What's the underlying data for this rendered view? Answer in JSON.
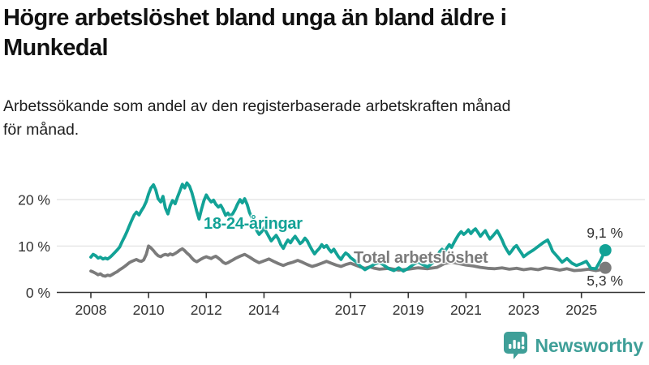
{
  "title_lines": [
    "Högre arbetslöshet bland unga än bland äldre i",
    "Munkedal"
  ],
  "subtitle_lines": [
    "Arbetssökande som andel av den registerbaserade arbetskraften månad",
    "för månad."
  ],
  "brand": {
    "name": "Newsworthy",
    "color": "#3f9f98"
  },
  "chart_data": {
    "type": "line",
    "unit": "%",
    "title": "Högre arbetslöshet bland unga än bland äldre i Munkedal",
    "x_axis": {
      "ticks": [
        2008,
        2010,
        2012,
        2014,
        2017,
        2019,
        2021,
        2023,
        2025
      ],
      "range": [
        2006.9,
        2027.3
      ]
    },
    "y_axis": {
      "ticks": [
        0,
        10,
        20
      ],
      "tick_labels": [
        "0 %",
        "10 %",
        "20 %"
      ],
      "range": [
        0,
        25
      ],
      "grid": true
    },
    "series": [
      {
        "name": "Total arbetslöshet",
        "color": "#7b7b7b",
        "end_label": "5,3 %",
        "end_value": 5.3,
        "points": [
          [
            2008.0,
            4.6
          ],
          [
            2008.08,
            4.4
          ],
          [
            2008.17,
            4.1
          ],
          [
            2008.25,
            3.8
          ],
          [
            2008.33,
            4.0
          ],
          [
            2008.42,
            3.6
          ],
          [
            2008.5,
            3.5
          ],
          [
            2008.58,
            3.7
          ],
          [
            2008.67,
            3.6
          ],
          [
            2008.75,
            3.9
          ],
          [
            2008.83,
            4.2
          ],
          [
            2008.92,
            4.5
          ],
          [
            2009.0,
            4.9
          ],
          [
            2009.08,
            5.2
          ],
          [
            2009.17,
            5.6
          ],
          [
            2009.25,
            6.0
          ],
          [
            2009.33,
            6.4
          ],
          [
            2009.42,
            6.7
          ],
          [
            2009.5,
            6.9
          ],
          [
            2009.58,
            7.1
          ],
          [
            2009.67,
            6.8
          ],
          [
            2009.75,
            6.7
          ],
          [
            2009.83,
            7.0
          ],
          [
            2009.92,
            8.2
          ],
          [
            2010.0,
            10.0
          ],
          [
            2010.08,
            9.6
          ],
          [
            2010.17,
            9.0
          ],
          [
            2010.25,
            8.4
          ],
          [
            2010.33,
            7.9
          ],
          [
            2010.42,
            7.7
          ],
          [
            2010.5,
            8.0
          ],
          [
            2010.58,
            8.2
          ],
          [
            2010.67,
            8.0
          ],
          [
            2010.75,
            8.3
          ],
          [
            2010.83,
            8.1
          ],
          [
            2010.92,
            8.4
          ],
          [
            2011.0,
            8.7
          ],
          [
            2011.08,
            9.1
          ],
          [
            2011.17,
            9.4
          ],
          [
            2011.25,
            9.0
          ],
          [
            2011.33,
            8.5
          ],
          [
            2011.42,
            8.0
          ],
          [
            2011.5,
            7.4
          ],
          [
            2011.58,
            6.9
          ],
          [
            2011.67,
            6.6
          ],
          [
            2011.75,
            6.9
          ],
          [
            2011.83,
            7.2
          ],
          [
            2011.92,
            7.5
          ],
          [
            2012.0,
            7.7
          ],
          [
            2012.08,
            7.5
          ],
          [
            2012.17,
            7.3
          ],
          [
            2012.25,
            7.6
          ],
          [
            2012.33,
            7.8
          ],
          [
            2012.42,
            7.4
          ],
          [
            2012.5,
            7.0
          ],
          [
            2012.58,
            6.5
          ],
          [
            2012.67,
            6.2
          ],
          [
            2012.75,
            6.4
          ],
          [
            2012.83,
            6.7
          ],
          [
            2012.92,
            7.0
          ],
          [
            2013.0,
            7.3
          ],
          [
            2013.17,
            7.8
          ],
          [
            2013.33,
            8.2
          ],
          [
            2013.5,
            7.6
          ],
          [
            2013.67,
            6.9
          ],
          [
            2013.83,
            6.4
          ],
          [
            2014.0,
            6.8
          ],
          [
            2014.17,
            7.2
          ],
          [
            2014.33,
            6.7
          ],
          [
            2014.5,
            6.2
          ],
          [
            2014.67,
            5.8
          ],
          [
            2014.83,
            6.2
          ],
          [
            2015.0,
            6.5
          ],
          [
            2015.17,
            6.9
          ],
          [
            2015.33,
            6.5
          ],
          [
            2015.5,
            6.0
          ],
          [
            2015.67,
            5.6
          ],
          [
            2015.83,
            5.9
          ],
          [
            2016.0,
            6.3
          ],
          [
            2016.17,
            6.7
          ],
          [
            2016.33,
            6.3
          ],
          [
            2016.5,
            5.9
          ],
          [
            2016.67,
            5.6
          ],
          [
            2016.83,
            6.0
          ],
          [
            2017.0,
            6.3
          ],
          [
            2017.17,
            5.9
          ],
          [
            2017.33,
            5.5
          ],
          [
            2017.5,
            5.2
          ],
          [
            2017.67,
            5.5
          ],
          [
            2017.83,
            5.2
          ],
          [
            2018.0,
            5.0
          ],
          [
            2018.33,
            5.2
          ],
          [
            2018.67,
            4.8
          ],
          [
            2019.0,
            5.0
          ],
          [
            2019.33,
            5.3
          ],
          [
            2019.67,
            5.1
          ],
          [
            2020.0,
            5.4
          ],
          [
            2020.25,
            6.2
          ],
          [
            2020.5,
            6.5
          ],
          [
            2020.75,
            6.2
          ],
          [
            2021.0,
            5.9
          ],
          [
            2021.25,
            5.7
          ],
          [
            2021.5,
            5.4
          ],
          [
            2021.75,
            5.2
          ],
          [
            2022.0,
            5.1
          ],
          [
            2022.25,
            5.3
          ],
          [
            2022.5,
            5.0
          ],
          [
            2022.75,
            5.2
          ],
          [
            2023.0,
            4.9
          ],
          [
            2023.25,
            5.1
          ],
          [
            2023.5,
            4.9
          ],
          [
            2023.75,
            5.3
          ],
          [
            2024.0,
            5.1
          ],
          [
            2024.25,
            4.8
          ],
          [
            2024.5,
            5.1
          ],
          [
            2024.75,
            4.7
          ],
          [
            2025.0,
            4.8
          ],
          [
            2025.25,
            5.0
          ],
          [
            2025.5,
            4.7
          ],
          [
            2025.67,
            4.9
          ],
          [
            2025.83,
            5.3
          ]
        ]
      },
      {
        "name": "18-24-åringar",
        "color": "#12a296",
        "end_label": "9,1 %",
        "end_value": 9.1,
        "points": [
          [
            2008.0,
            7.6
          ],
          [
            2008.08,
            8.2
          ],
          [
            2008.17,
            7.9
          ],
          [
            2008.25,
            7.4
          ],
          [
            2008.33,
            7.6
          ],
          [
            2008.42,
            7.2
          ],
          [
            2008.5,
            7.4
          ],
          [
            2008.58,
            7.2
          ],
          [
            2008.67,
            7.6
          ],
          [
            2008.75,
            8.1
          ],
          [
            2008.83,
            8.6
          ],
          [
            2008.92,
            9.2
          ],
          [
            2009.0,
            9.8
          ],
          [
            2009.08,
            10.9
          ],
          [
            2009.17,
            12.0
          ],
          [
            2009.25,
            13.1
          ],
          [
            2009.33,
            14.3
          ],
          [
            2009.42,
            15.6
          ],
          [
            2009.5,
            16.7
          ],
          [
            2009.58,
            17.3
          ],
          [
            2009.67,
            16.7
          ],
          [
            2009.75,
            17.6
          ],
          [
            2009.83,
            18.4
          ],
          [
            2009.92,
            19.6
          ],
          [
            2010.0,
            21.2
          ],
          [
            2010.08,
            22.5
          ],
          [
            2010.17,
            23.2
          ],
          [
            2010.25,
            22.1
          ],
          [
            2010.33,
            20.2
          ],
          [
            2010.42,
            19.5
          ],
          [
            2010.5,
            20.7
          ],
          [
            2010.58,
            18.2
          ],
          [
            2010.67,
            16.9
          ],
          [
            2010.75,
            18.7
          ],
          [
            2010.83,
            19.8
          ],
          [
            2010.92,
            19.1
          ],
          [
            2011.0,
            20.5
          ],
          [
            2011.08,
            21.8
          ],
          [
            2011.17,
            23.3
          ],
          [
            2011.25,
            22.5
          ],
          [
            2011.33,
            23.6
          ],
          [
            2011.42,
            22.9
          ],
          [
            2011.5,
            21.5
          ],
          [
            2011.58,
            19.7
          ],
          [
            2011.67,
            17.5
          ],
          [
            2011.75,
            15.8
          ],
          [
            2011.83,
            17.8
          ],
          [
            2011.92,
            19.8
          ],
          [
            2012.0,
            21.0
          ],
          [
            2012.08,
            20.2
          ],
          [
            2012.17,
            19.5
          ],
          [
            2012.25,
            19.9
          ],
          [
            2012.33,
            19.0
          ],
          [
            2012.42,
            18.4
          ],
          [
            2012.5,
            18.8
          ],
          [
            2012.58,
            17.9
          ],
          [
            2012.67,
            16.6
          ],
          [
            2012.75,
            17.1
          ],
          [
            2012.83,
            16.4
          ],
          [
            2012.92,
            17.0
          ],
          [
            2013.0,
            17.9
          ],
          [
            2013.08,
            19.0
          ],
          [
            2013.17,
            20.0
          ],
          [
            2013.25,
            19.3
          ],
          [
            2013.33,
            20.2
          ],
          [
            2013.42,
            18.9
          ],
          [
            2013.5,
            17.2
          ],
          [
            2013.58,
            16.1
          ],
          [
            2013.67,
            14.7
          ],
          [
            2013.75,
            13.3
          ],
          [
            2013.83,
            12.5
          ],
          [
            2013.92,
            13.1
          ],
          [
            2014.0,
            13.9
          ],
          [
            2014.08,
            13.0
          ],
          [
            2014.17,
            12.0
          ],
          [
            2014.25,
            11.1
          ],
          [
            2014.33,
            11.7
          ],
          [
            2014.42,
            12.3
          ],
          [
            2014.5,
            11.5
          ],
          [
            2014.58,
            10.3
          ],
          [
            2014.67,
            9.5
          ],
          [
            2014.75,
            10.5
          ],
          [
            2014.83,
            11.3
          ],
          [
            2014.92,
            10.7
          ],
          [
            2015.0,
            11.5
          ],
          [
            2015.08,
            12.1
          ],
          [
            2015.17,
            11.3
          ],
          [
            2015.25,
            10.5
          ],
          [
            2015.33,
            10.9
          ],
          [
            2015.42,
            11.7
          ],
          [
            2015.5,
            11.1
          ],
          [
            2015.58,
            10.1
          ],
          [
            2015.67,
            9.1
          ],
          [
            2015.75,
            8.3
          ],
          [
            2015.83,
            8.9
          ],
          [
            2015.92,
            9.5
          ],
          [
            2016.0,
            10.3
          ],
          [
            2016.08,
            9.7
          ],
          [
            2016.17,
            10.1
          ],
          [
            2016.25,
            9.3
          ],
          [
            2016.33,
            8.7
          ],
          [
            2016.42,
            9.3
          ],
          [
            2016.5,
            8.5
          ],
          [
            2016.58,
            7.7
          ],
          [
            2016.67,
            7.1
          ],
          [
            2016.75,
            7.9
          ],
          [
            2016.83,
            8.5
          ],
          [
            2016.92,
            8.1
          ],
          [
            2017.0,
            7.5
          ],
          [
            2017.17,
            6.7
          ],
          [
            2017.33,
            5.7
          ],
          [
            2017.5,
            4.9
          ],
          [
            2017.67,
            5.5
          ],
          [
            2017.83,
            6.1
          ],
          [
            2018.0,
            6.5
          ],
          [
            2018.17,
            5.8
          ],
          [
            2018.33,
            5.1
          ],
          [
            2018.5,
            4.7
          ],
          [
            2018.67,
            5.3
          ],
          [
            2018.83,
            4.6
          ],
          [
            2019.0,
            5.2
          ],
          [
            2019.17,
            6.0
          ],
          [
            2019.33,
            6.6
          ],
          [
            2019.5,
            6.0
          ],
          [
            2019.67,
            5.5
          ],
          [
            2019.83,
            6.3
          ],
          [
            2020.0,
            7.3
          ],
          [
            2020.08,
            8.7
          ],
          [
            2020.17,
            9.3
          ],
          [
            2020.25,
            8.7
          ],
          [
            2020.33,
            9.5
          ],
          [
            2020.42,
            10.3
          ],
          [
            2020.5,
            9.7
          ],
          [
            2020.58,
            10.7
          ],
          [
            2020.67,
            11.7
          ],
          [
            2020.75,
            12.5
          ],
          [
            2020.83,
            13.1
          ],
          [
            2020.92,
            12.5
          ],
          [
            2021.0,
            12.9
          ],
          [
            2021.08,
            13.5
          ],
          [
            2021.17,
            12.7
          ],
          [
            2021.25,
            13.3
          ],
          [
            2021.33,
            13.7
          ],
          [
            2021.42,
            12.9
          ],
          [
            2021.5,
            12.1
          ],
          [
            2021.58,
            12.7
          ],
          [
            2021.67,
            13.3
          ],
          [
            2021.75,
            12.3
          ],
          [
            2021.83,
            11.5
          ],
          [
            2021.92,
            12.1
          ],
          [
            2022.0,
            12.7
          ],
          [
            2022.08,
            13.3
          ],
          [
            2022.17,
            12.3
          ],
          [
            2022.25,
            11.3
          ],
          [
            2022.33,
            10.1
          ],
          [
            2022.42,
            9.1
          ],
          [
            2022.5,
            8.3
          ],
          [
            2022.58,
            8.9
          ],
          [
            2022.67,
            9.7
          ],
          [
            2022.75,
            10.1
          ],
          [
            2022.83,
            9.3
          ],
          [
            2022.92,
            8.5
          ],
          [
            2023.0,
            7.7
          ],
          [
            2023.17,
            8.5
          ],
          [
            2023.33,
            9.1
          ],
          [
            2023.5,
            9.9
          ],
          [
            2023.67,
            10.7
          ],
          [
            2023.83,
            11.3
          ],
          [
            2023.92,
            10.1
          ],
          [
            2024.0,
            8.9
          ],
          [
            2024.17,
            7.7
          ],
          [
            2024.33,
            6.5
          ],
          [
            2024.5,
            7.3
          ],
          [
            2024.67,
            6.3
          ],
          [
            2024.83,
            5.8
          ],
          [
            2025.0,
            6.2
          ],
          [
            2025.17,
            6.7
          ],
          [
            2025.33,
            5.2
          ],
          [
            2025.5,
            5.1
          ],
          [
            2025.67,
            7.0
          ],
          [
            2025.83,
            9.1
          ]
        ]
      }
    ]
  }
}
